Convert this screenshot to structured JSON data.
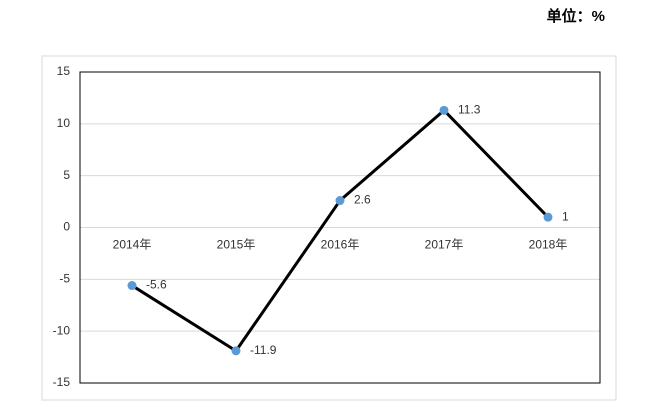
{
  "chart_data": {
    "type": "line",
    "unit_label": "单位：%",
    "categories": [
      "2014年",
      "2015年",
      "2016年",
      "2017年",
      "2018年"
    ],
    "values": [
      -5.6,
      -11.9,
      2.6,
      11.3,
      1
    ],
    "color": "#000000",
    "marker_color": "#5b9bd5",
    "ylim": [
      -15,
      15
    ],
    "yticks": [
      -15,
      -10,
      -5,
      0,
      5,
      10,
      15
    ],
    "grid": true
  }
}
